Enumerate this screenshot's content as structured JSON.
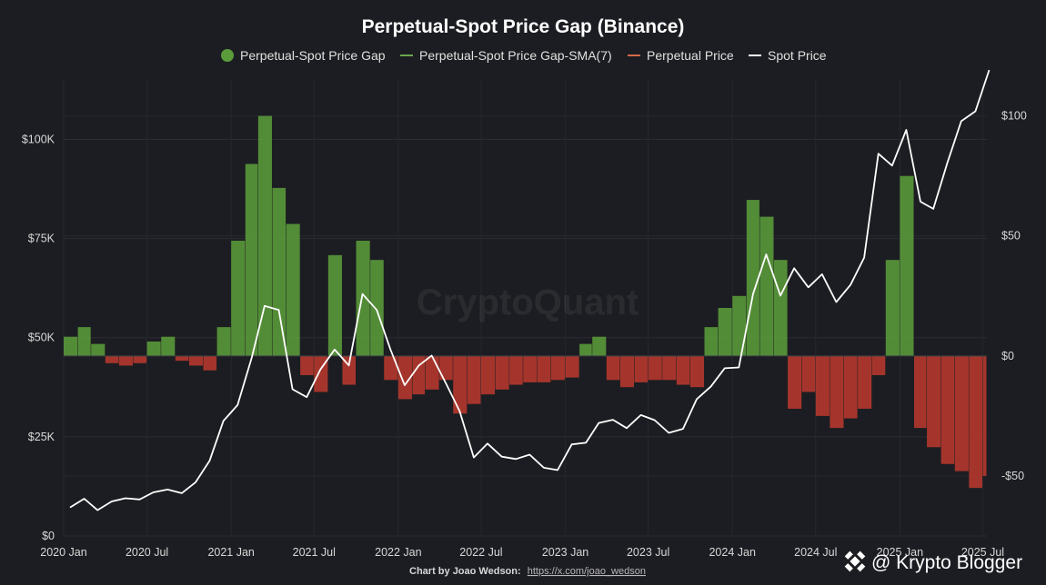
{
  "chart_data": {
    "type": "bar",
    "title": "Perpetual-Spot Price Gap (Binance)",
    "legend": [
      {
        "name": "Perpetual-Spot Price Gap",
        "color": "#5b9c3a",
        "marker": "dot"
      },
      {
        "name": "Perpetual-Spot Price Gap-SMA(7)",
        "color": "#6aa84f",
        "marker": "line"
      },
      {
        "name": "Perpetual Price",
        "color": "#d4694a",
        "marker": "line"
      },
      {
        "name": "Spot Price",
        "color": "#ffffff",
        "marker": "line"
      }
    ],
    "legend_position": "top-center",
    "watermark": "CryptoQuant",
    "credit_label": "Chart by Joao Wedson:",
    "credit_link": "https://x.com/joao_wedson",
    "grid": true,
    "x_axis": {
      "type": "date",
      "range": [
        "2020-01-01",
        "2025-07-10"
      ],
      "tick_labels": [
        "2020 Jan",
        "2020 Jul",
        "2021 Jan",
        "2021 Jul",
        "2022 Jan",
        "2022 Jul",
        "2023 Jan",
        "2023 Jul",
        "2024 Jan",
        "2024 Jul",
        "2025 Jan",
        "2025 Jul"
      ]
    },
    "y_left": {
      "label": "",
      "range": [
        0,
        115000
      ],
      "ticks": [
        0,
        25000,
        50000,
        75000,
        100000
      ],
      "tick_labels": [
        "$0",
        "$25K",
        "$50K",
        "$75K",
        "$100K"
      ]
    },
    "y_right": {
      "label": "",
      "range": [
        -75,
        115
      ],
      "ticks": [
        -50,
        0,
        50,
        100
      ],
      "tick_labels": [
        "-$50",
        "$0",
        "$50",
        "$100"
      ]
    },
    "gap_series": {
      "name": "Perpetual-Spot Price Gap",
      "positive_color": "#5b9c3a",
      "negative_color": "#b8392e",
      "x": [
        "2020-01",
        "2020-02",
        "2020-03",
        "2020-04",
        "2020-05",
        "2020-06",
        "2020-07",
        "2020-08",
        "2020-09",
        "2020-10",
        "2020-11",
        "2020-12",
        "2021-01",
        "2021-02",
        "2021-03",
        "2021-04",
        "2021-05",
        "2021-06",
        "2021-07",
        "2021-08",
        "2021-09",
        "2021-10",
        "2021-11",
        "2021-12",
        "2022-01",
        "2022-02",
        "2022-03",
        "2022-04",
        "2022-05",
        "2022-06",
        "2022-07",
        "2022-08",
        "2022-09",
        "2022-10",
        "2022-11",
        "2022-12",
        "2023-01",
        "2023-02",
        "2023-03",
        "2023-04",
        "2023-05",
        "2023-06",
        "2023-07",
        "2023-08",
        "2023-09",
        "2023-10",
        "2023-11",
        "2023-12",
        "2024-01",
        "2024-02",
        "2024-03",
        "2024-04",
        "2024-05",
        "2024-06",
        "2024-07",
        "2024-08",
        "2024-09",
        "2024-10",
        "2024-11",
        "2024-12",
        "2025-01",
        "2025-02",
        "2025-03",
        "2025-04",
        "2025-05",
        "2025-06",
        "2025-07"
      ],
      "values": [
        8,
        12,
        5,
        -3,
        -4,
        -3,
        6,
        8,
        -2,
        -4,
        -6,
        12,
        48,
        80,
        100,
        70,
        55,
        -8,
        -15,
        42,
        -12,
        48,
        40,
        -10,
        -18,
        -16,
        -14,
        -10,
        -24,
        -20,
        -16,
        -14,
        -12,
        -11,
        -11,
        -10,
        -9,
        5,
        8,
        -10,
        -13,
        -11,
        -10,
        -10,
        -12,
        -13,
        12,
        20,
        25,
        65,
        58,
        40,
        -22,
        -15,
        -25,
        -30,
        -26,
        -22,
        -8,
        40,
        75,
        -30,
        -38,
        -45,
        -48,
        -55,
        -50
      ]
    },
    "spot_series": {
      "name": "Spot Price",
      "x": [
        "2020-01",
        "2020-02",
        "2020-03",
        "2020-04",
        "2020-05",
        "2020-06",
        "2020-07",
        "2020-08",
        "2020-09",
        "2020-10",
        "2020-11",
        "2020-12",
        "2021-01",
        "2021-02",
        "2021-03",
        "2021-04",
        "2021-05",
        "2021-06",
        "2021-07",
        "2021-08",
        "2021-09",
        "2021-10",
        "2021-11",
        "2021-12",
        "2022-01",
        "2022-02",
        "2022-03",
        "2022-04",
        "2022-05",
        "2022-06",
        "2022-07",
        "2022-08",
        "2022-09",
        "2022-10",
        "2022-11",
        "2022-12",
        "2023-01",
        "2023-02",
        "2023-03",
        "2023-04",
        "2023-05",
        "2023-06",
        "2023-07",
        "2023-08",
        "2023-09",
        "2023-10",
        "2023-11",
        "2023-12",
        "2024-01",
        "2024-02",
        "2024-03",
        "2024-04",
        "2024-05",
        "2024-06",
        "2024-07",
        "2024-08",
        "2024-09",
        "2024-10",
        "2024-11",
        "2024-12",
        "2025-01",
        "2025-02",
        "2025-03",
        "2025-04",
        "2025-05",
        "2025-06",
        "2025-07"
      ],
      "values": [
        7200,
        9400,
        6500,
        8700,
        9500,
        9200,
        11000,
        11700,
        10800,
        13500,
        19000,
        29000,
        33000,
        45000,
        58000,
        57000,
        37000,
        35000,
        42000,
        47000,
        43000,
        61000,
        57000,
        47000,
        38000,
        43000,
        45500,
        38500,
        31500,
        19800,
        23300,
        20000,
        19400,
        20500,
        17200,
        16600,
        23100,
        23500,
        28500,
        29300,
        27200,
        30500,
        29200,
        26000,
        27000,
        34500,
        37700,
        42300,
        42500,
        61000,
        71000,
        60600,
        67500,
        62700,
        66000,
        59000,
        63300,
        70200,
        96400,
        93400,
        102400,
        84300,
        82500,
        94200,
        104600,
        107100,
        117500
      ]
    }
  }
}
